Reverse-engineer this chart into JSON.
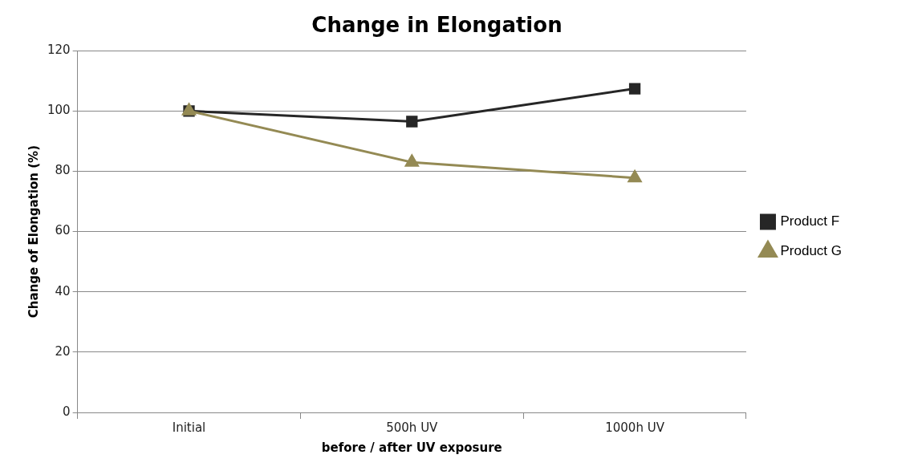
{
  "chart_data": {
    "type": "line",
    "title": "Change in Elongation",
    "xlabel": "before / after UV exposure",
    "ylabel": "Change of Elongation (%)",
    "categories": [
      "Initial",
      "500h UV",
      "1000h UV"
    ],
    "series": [
      {
        "name": "Product F",
        "color": "#262626",
        "marker": "square",
        "values": [
          100,
          96.5,
          107.4
        ]
      },
      {
        "name": "Product G",
        "color": "#948a54",
        "marker": "triangle",
        "values": [
          100,
          83,
          77.8
        ]
      }
    ],
    "ylim": [
      0,
      120
    ],
    "yticks": [
      0,
      20,
      40,
      60,
      80,
      100,
      120
    ],
    "grid": "y",
    "legend": "right",
    "line_style": "solid"
  }
}
